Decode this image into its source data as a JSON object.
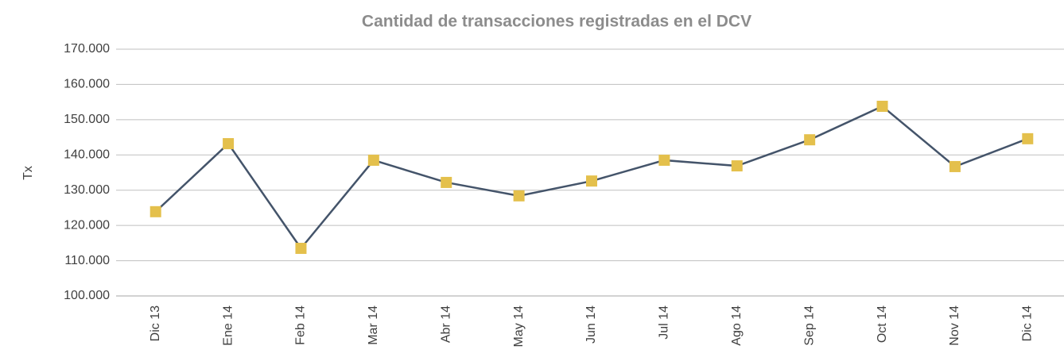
{
  "chart_data": {
    "type": "line",
    "title": "Cantidad de transacciones registradas en el DCV",
    "y_label": "Tx",
    "categories": [
      "Dic 13",
      "Ene 14",
      "Feb 14",
      "Mar 14",
      "Abr 14",
      "May 14",
      "Jun 14",
      "Jul 14",
      "Ago 14",
      "Sep 14",
      "Oct 14",
      "Nov 14",
      "Dic 14"
    ],
    "series": [
      {
        "name": "Tx",
        "color": "#44546a",
        "marker_color": "#e4c04c",
        "values": [
          123900,
          143200,
          113500,
          138500,
          132200,
          128400,
          132600,
          138500,
          136900,
          144300,
          153800,
          136700,
          144600
        ]
      }
    ],
    "ylim": [
      100000,
      170000
    ],
    "yticks": [
      {
        "value": 100000,
        "label": "100.000"
      },
      {
        "value": 110000,
        "label": "110.000"
      },
      {
        "value": 120000,
        "label": "120.000"
      },
      {
        "value": 130000,
        "label": "130.000"
      },
      {
        "value": 140000,
        "label": "140.000"
      },
      {
        "value": 150000,
        "label": "150.000"
      },
      {
        "value": 160000,
        "label": "160.000"
      },
      {
        "value": 170000,
        "label": "170.000"
      }
    ],
    "grid": true
  }
}
